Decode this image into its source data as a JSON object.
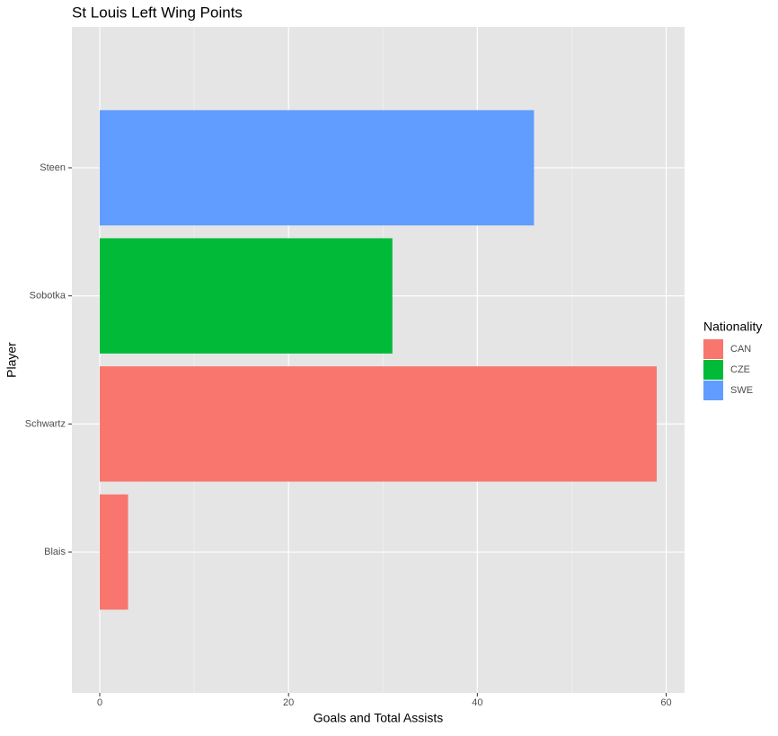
{
  "chart_data": {
    "type": "barh",
    "title": "St Louis Left Wing Points",
    "x_label": "Goals and Total Assists",
    "y_label": "Player",
    "legend_title": "Nationality",
    "categories": [
      "Blais",
      "Schwartz",
      "Sobotka",
      "Steen"
    ],
    "series": [
      {
        "name": "CAN",
        "color": "#F8766D",
        "values": [
          3,
          59,
          null,
          null
        ]
      },
      {
        "name": "CZE",
        "color": "#00BA38",
        "values": [
          null,
          null,
          31,
          null
        ]
      },
      {
        "name": "SWE",
        "color": "#619CFF",
        "values": [
          null,
          null,
          null,
          46
        ]
      }
    ],
    "xlim": [
      -2.95,
      61.95
    ],
    "xticks": [
      0,
      20,
      40,
      60
    ],
    "grid": true,
    "legend": "right"
  }
}
